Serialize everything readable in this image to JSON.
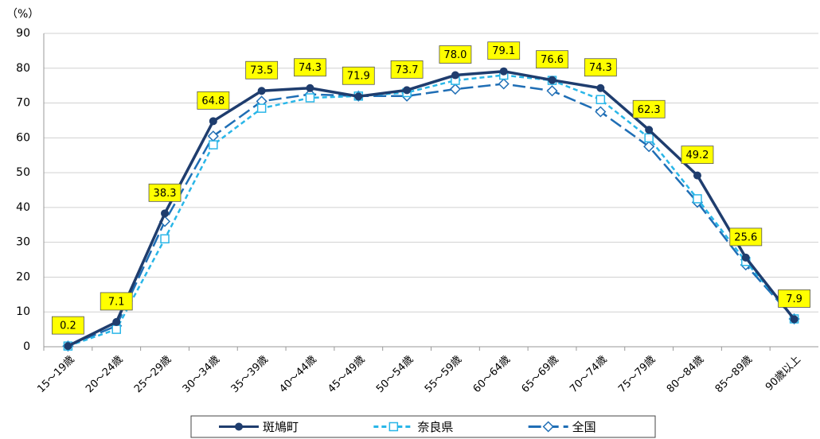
{
  "chart_data": {
    "type": "line",
    "y_unit": "（%）",
    "categories": [
      "15～19歳",
      "20～24歳",
      "25～29歳",
      "30～34歳",
      "35～39歳",
      "40～44歳",
      "45～49歳",
      "50～54歳",
      "55～59歳",
      "60～64歳",
      "65～69歳",
      "70～74歳",
      "75～79歳",
      "80～84歳",
      "85～89歳",
      "90歳以上"
    ],
    "ylim": [
      0,
      90
    ],
    "yticks": [
      0,
      10,
      20,
      30,
      40,
      50,
      60,
      70,
      80,
      90
    ],
    "grid": true,
    "legend": "bottom",
    "series": [
      {
        "name": "斑鳩町",
        "color": "#1f3d6e",
        "marker": "circle",
        "dash": "solid",
        "values": [
          0.2,
          7.1,
          38.3,
          64.8,
          73.5,
          74.3,
          71.9,
          73.7,
          78.0,
          79.1,
          76.6,
          74.3,
          62.3,
          49.2,
          25.6,
          7.9
        ],
        "value_labels": [
          "0.2",
          "7.1",
          "38.3",
          "64.8",
          "73.5",
          "74.3",
          "71.9",
          "73.7",
          "78.0",
          "79.1",
          "76.6",
          "74.3",
          "62.3",
          "49.2",
          "25.6",
          "7.9"
        ]
      },
      {
        "name": "奈良県",
        "color": "#29b6e8",
        "marker": "square",
        "dash": "short",
        "values": [
          0.2,
          5,
          31,
          58,
          68.5,
          71.5,
          72,
          73,
          76.5,
          78,
          76.5,
          71,
          60,
          42.5,
          24.5,
          8
        ]
      },
      {
        "name": "全国",
        "color": "#1f6eb5",
        "marker": "diamond",
        "dash": "long",
        "values": [
          0.2,
          6,
          36,
          60.5,
          70.5,
          72.5,
          72,
          72,
          74,
          75.5,
          73.5,
          67.5,
          57.5,
          41.5,
          23.5,
          8
        ]
      }
    ]
  }
}
